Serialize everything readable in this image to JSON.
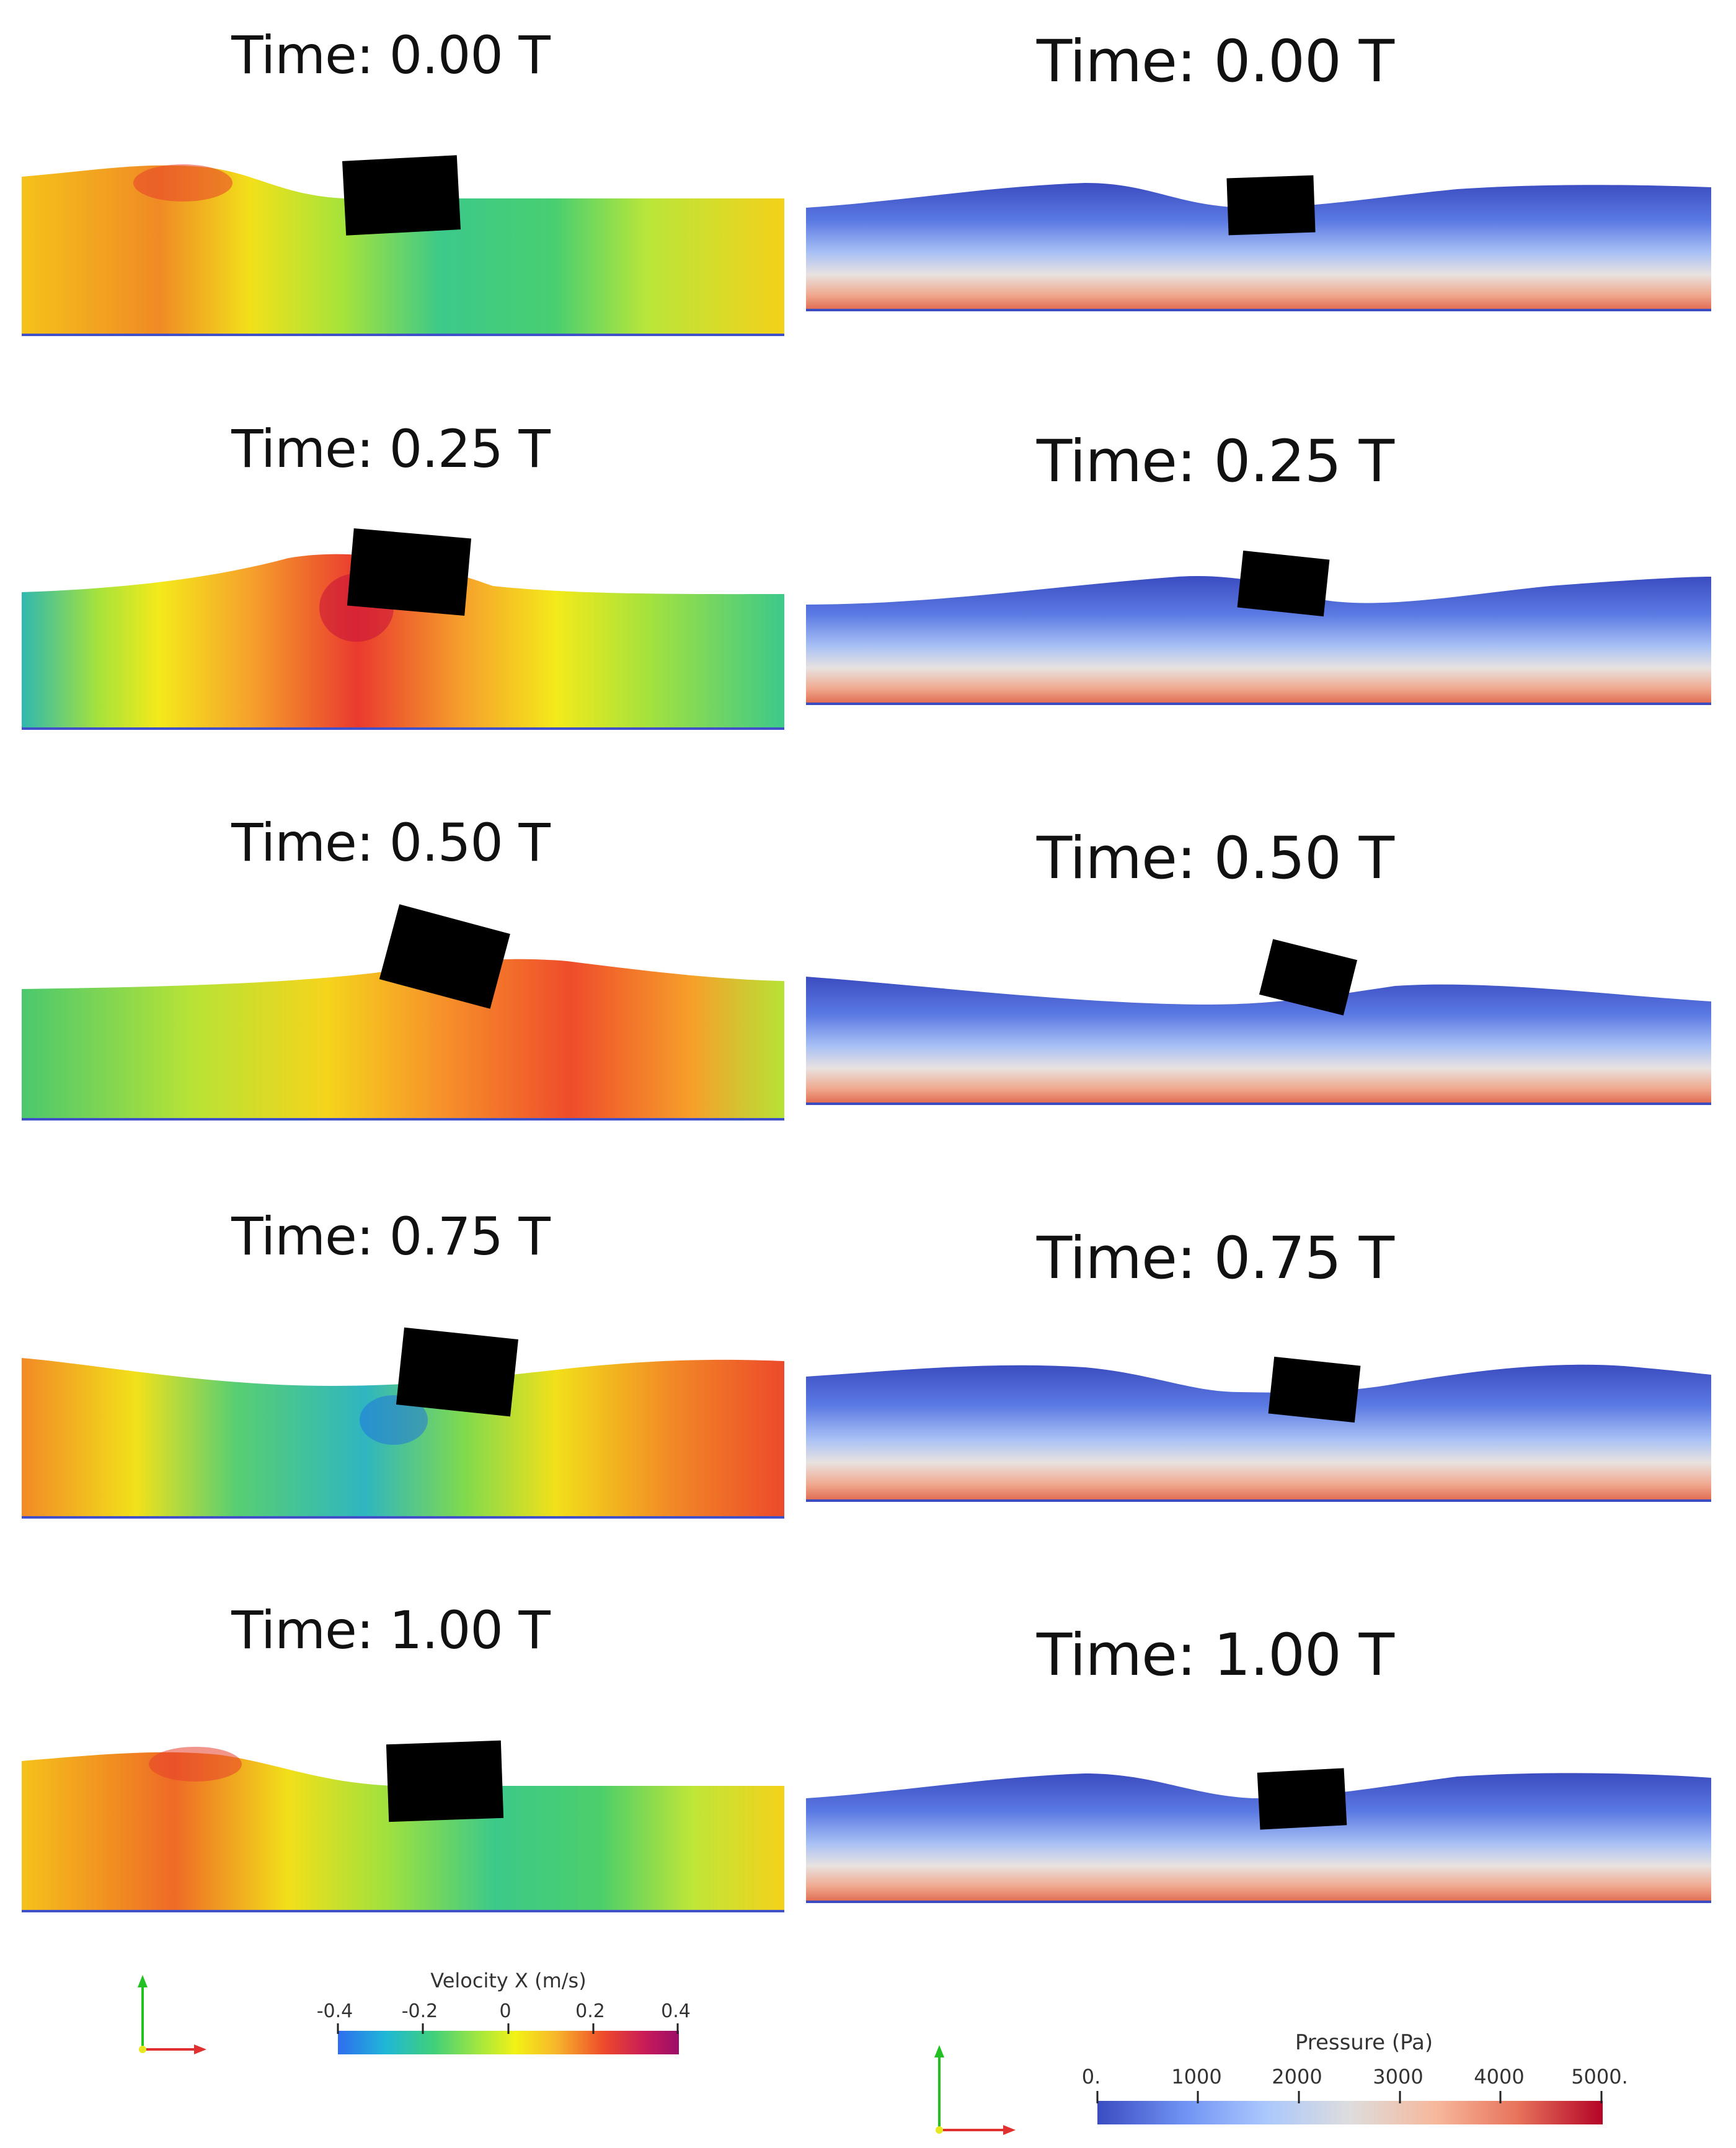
{
  "velocity_column": {
    "frames": [
      {
        "time_label": "Time: 0.00 T",
        "block_tilt_deg": -3
      },
      {
        "time_label": "Time: 0.25 T",
        "block_tilt_deg": 5
      },
      {
        "time_label": "Time: 0.50 T",
        "block_tilt_deg": 15
      },
      {
        "time_label": "Time: 0.75 T",
        "block_tilt_deg": 6
      },
      {
        "time_label": "Time: 1.00 T",
        "block_tilt_deg": -2
      }
    ],
    "legend": {
      "title": "Velocity X (m/s)",
      "ticks": [
        "-0.4",
        "-0.2",
        "0",
        "0.2",
        "0.4"
      ],
      "colors": [
        "#2f6df0",
        "#1fb7d6",
        "#3fd07a",
        "#a8e83c",
        "#f2f215",
        "#f7b62b",
        "#ee4a2b",
        "#c81b58",
        "#9c0d68"
      ]
    }
  },
  "pressure_column": {
    "frames": [
      {
        "time_label": "Time: 0.00 T",
        "block_tilt_deg": -2
      },
      {
        "time_label": "Time: 0.25 T",
        "block_tilt_deg": 6
      },
      {
        "time_label": "Time: 0.50 T",
        "block_tilt_deg": 14
      },
      {
        "time_label": "Time: 0.75 T",
        "block_tilt_deg": 6
      },
      {
        "time_label": "Time: 1.00 T",
        "block_tilt_deg": -3
      }
    ],
    "legend": {
      "title": "Pressure (Pa)",
      "ticks": [
        "0.",
        "1000",
        "2000",
        "3000",
        "4000",
        "5000."
      ],
      "colors": [
        "#3b4cc0",
        "#6f92f3",
        "#aac7fd",
        "#dddddd",
        "#f7b89c",
        "#e7745b",
        "#b40426"
      ]
    }
  },
  "axes_triad": {
    "up_color": "#22c022",
    "right_color": "#e03030",
    "origin_color": "#e8e820"
  }
}
